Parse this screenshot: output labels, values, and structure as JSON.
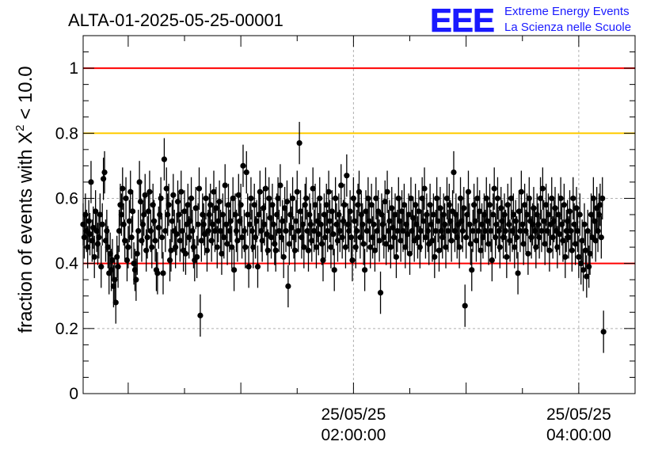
{
  "header": {
    "title": "ALTA-01-2025-05-25-00001",
    "logo": {
      "mark": "EEE",
      "line1": "Extreme Energy Events",
      "line2": "La Scienza nelle Scuole"
    }
  },
  "chart_data": {
    "type": "scatter",
    "ylabel_prefix": "fraction of events with X",
    "ylabel_sup": "2",
    "ylabel_suffix": " < 10.0",
    "xlabel": "",
    "ylim": [
      0,
      1.1
    ],
    "xlim_hours": [
      -0.4,
      4.5
    ],
    "grid": true,
    "x_unit": "hours after 2025-05-25 00:00:00",
    "x_ticks": [
      {
        "hours": 2.0,
        "date": "25/05/25",
        "time": "02:00:00"
      },
      {
        "hours": 4.0,
        "date": "25/05/25",
        "time": "04:00:00"
      }
    ],
    "y_ticks": [
      {
        "value": 0,
        "label": "0"
      },
      {
        "value": 0.2,
        "label": "0.2"
      },
      {
        "value": 0.4,
        "label": "0.4"
      },
      {
        "value": 0.6,
        "label": "0.6"
      },
      {
        "value": 0.8,
        "label": "0.8"
      },
      {
        "value": 1.0,
        "label": "1"
      }
    ],
    "reference_lines": [
      {
        "value": 1.0,
        "color": "#ff0000"
      },
      {
        "value": 0.8,
        "color": "#ffcc00"
      },
      {
        "value": 0.4,
        "color": "#ff0000"
      }
    ],
    "marker_color": "#000000",
    "series": [
      {
        "x_start_hours": -0.4,
        "x_step_hours": 0.01,
        "error": 0.065,
        "y": [
          0.52,
          0.48,
          0.55,
          0.5,
          0.45,
          0.53,
          0.49,
          0.65,
          0.47,
          0.51,
          0.42,
          0.56,
          0.5,
          0.46,
          0.48,
          0.55,
          0.39,
          0.52,
          0.66,
          0.68,
          0.47,
          0.5,
          0.45,
          0.37,
          0.43,
          0.38,
          0.41,
          0.33,
          0.35,
          0.28,
          0.42,
          0.39,
          0.5,
          0.58,
          0.55,
          0.63,
          0.52,
          0.47,
          0.6,
          0.41,
          0.45,
          0.53,
          0.62,
          0.48,
          0.56,
          0.4,
          0.38,
          0.35,
          0.43,
          0.5,
          0.65,
          0.59,
          0.47,
          0.52,
          0.55,
          0.61,
          0.44,
          0.48,
          0.56,
          0.62,
          0.5,
          0.45,
          0.58,
          0.53,
          0.47,
          0.38,
          0.37,
          0.51,
          0.55,
          0.6,
          0.48,
          0.37,
          0.72,
          0.5,
          0.63,
          0.55,
          0.58,
          0.41,
          0.44,
          0.53,
          0.61,
          0.5,
          0.45,
          0.49,
          0.59,
          0.55,
          0.47,
          0.62,
          0.5,
          0.44,
          0.56,
          0.43,
          0.52,
          0.58,
          0.48,
          0.53,
          0.6,
          0.5,
          0.45,
          0.41,
          0.57,
          0.42,
          0.52,
          0.63,
          0.24,
          0.47,
          0.55,
          0.52,
          0.49,
          0.6,
          0.44,
          0.5,
          0.55,
          0.58,
          0.47,
          0.52,
          0.62,
          0.5,
          0.57,
          0.45,
          0.53,
          0.59,
          0.5,
          0.43,
          0.55,
          0.48,
          0.64,
          0.52,
          0.46,
          0.58,
          0.5,
          0.53,
          0.45,
          0.6,
          0.38,
          0.55,
          0.5,
          0.47,
          0.61,
          0.53,
          0.58,
          0.48,
          0.7,
          0.5,
          0.45,
          0.68,
          0.55,
          0.39,
          0.52,
          0.6,
          0.5,
          0.45,
          0.58,
          0.48,
          0.53,
          0.39,
          0.55,
          0.62,
          0.5,
          0.47,
          0.57,
          0.52,
          0.63,
          0.49,
          0.44,
          0.6,
          0.54,
          0.48,
          0.58,
          0.52,
          0.46,
          0.44,
          0.55,
          0.6,
          0.5,
          0.64,
          0.48,
          0.53,
          0.42,
          0.57,
          0.5,
          0.59,
          0.33,
          0.46,
          0.55,
          0.51,
          0.6,
          0.48,
          0.44,
          0.53,
          0.62,
          0.5,
          0.77,
          0.56,
          0.48,
          0.52,
          0.45,
          0.58,
          0.6,
          0.5,
          0.44,
          0.55,
          0.52,
          0.47,
          0.63,
          0.5,
          0.58,
          0.45,
          0.53,
          0.49,
          0.6,
          0.52,
          0.46,
          0.41,
          0.55,
          0.48,
          0.58,
          0.5,
          0.62,
          0.53,
          0.45,
          0.56,
          0.49,
          0.38,
          0.6,
          0.52,
          0.47,
          0.55,
          0.5,
          0.64,
          0.48,
          0.53,
          0.58,
          0.45,
          0.67,
          0.52,
          0.5,
          0.56,
          0.48,
          0.41,
          0.6,
          0.53,
          0.45,
          0.5,
          0.58,
          0.62,
          0.48,
          0.55,
          0.52,
          0.46,
          0.38,
          0.56,
          0.5,
          0.6,
          0.53,
          0.45,
          0.58,
          0.48,
          0.52,
          0.44,
          0.6,
          0.5,
          0.56,
          0.47,
          0.31,
          0.55,
          0.52,
          0.48,
          0.59,
          0.46,
          0.62,
          0.5,
          0.53,
          0.45,
          0.57,
          0.51,
          0.48,
          0.55,
          0.42,
          0.5,
          0.6,
          0.53,
          0.47,
          0.56,
          0.5,
          0.58,
          0.45,
          0.52,
          0.49,
          0.55,
          0.43,
          0.6,
          0.5,
          0.54,
          0.47,
          0.58,
          0.52,
          0.48,
          0.56,
          0.45,
          0.5,
          0.6,
          0.53,
          0.63,
          0.48,
          0.55,
          0.5,
          0.46,
          0.58,
          0.52,
          0.47,
          0.55,
          0.42,
          0.5,
          0.6,
          0.53,
          0.44,
          0.57,
          0.5,
          0.48,
          0.55,
          0.52,
          0.45,
          0.6,
          0.5,
          0.58,
          0.53,
          0.47,
          0.56,
          0.68,
          0.5,
          0.55,
          0.48,
          0.52,
          0.45,
          0.6,
          0.53,
          0.5,
          0.57,
          0.27,
          0.48,
          0.55,
          0.62,
          0.52,
          0.46,
          0.38,
          0.5,
          0.58,
          0.53,
          0.47,
          0.6,
          0.5,
          0.56,
          0.44,
          0.52,
          0.48,
          0.55,
          0.5,
          0.6,
          0.53,
          0.46,
          0.58,
          0.5,
          0.41,
          0.55,
          0.63,
          0.48,
          0.52,
          0.6,
          0.5,
          0.45,
          0.57,
          0.53,
          0.48,
          0.55,
          0.5,
          0.42,
          0.58,
          0.52,
          0.47,
          0.6,
          0.5,
          0.55,
          0.45,
          0.53,
          0.48,
          0.37,
          0.56,
          0.5,
          0.62,
          0.52,
          0.46,
          0.58,
          0.5,
          0.55,
          0.43,
          0.6,
          0.53,
          0.48,
          0.52,
          0.57,
          0.5,
          0.45,
          0.55,
          0.52,
          0.48,
          0.6,
          0.5,
          0.63,
          0.53,
          0.46,
          0.58,
          0.5,
          0.55,
          0.44,
          0.52,
          0.6,
          0.48,
          0.53,
          0.57,
          0.5,
          0.45,
          0.55,
          0.49,
          0.6,
          0.52,
          0.47,
          0.58,
          0.42,
          0.5,
          0.53,
          0.48,
          0.56,
          0.5,
          0.44,
          0.6,
          0.52,
          0.46,
          0.57,
          0.5,
          0.42,
          0.55,
          0.4,
          0.47,
          0.38,
          0.52,
          0.44,
          0.36,
          0.5,
          0.39,
          0.43,
          0.55,
          0.48,
          0.6,
          0.53,
          0.47,
          0.57,
          0.5,
          0.55,
          0.58,
          0.48,
          0.6,
          0.19
        ]
      }
    ]
  }
}
